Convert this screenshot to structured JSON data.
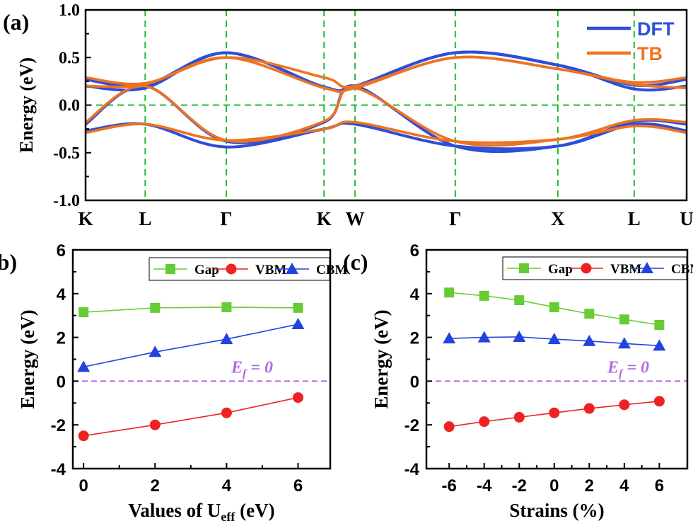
{
  "chart_data": [
    {
      "panel": "(a)",
      "type": "line",
      "ylabel": "Energy (eV)",
      "ylim": [
        -1.0,
        1.0
      ],
      "yticks": [
        "-1.0",
        "-0.5",
        "0.0",
        "0.5",
        "1.0"
      ],
      "ytick_values": [
        -1.0,
        -0.5,
        0.0,
        0.5,
        1.0
      ],
      "kpath_labels": [
        "K",
        "L",
        "Γ",
        "K",
        "W",
        "Γ",
        "X",
        "L",
        "U"
      ],
      "kpath_positions": [
        0,
        0.25,
        0.59,
        1.0,
        1.13,
        1.55,
        1.98,
        2.3,
        2.52
      ],
      "fermi_level": 0.0,
      "legend_position": "top-right",
      "series": [
        {
          "name": "DFT",
          "color": "#2d4ed8",
          "bands": [
            {
              "x": [
                0,
                0.25,
                0.59,
                1.0,
                1.13,
                1.55,
                1.98,
                2.3,
                2.52
              ],
              "y": [
                0.27,
                0.21,
                0.55,
                0.19,
                0.2,
                0.55,
                0.42,
                0.21,
                0.27
              ]
            },
            {
              "x": [
                0,
                0.25,
                0.59,
                1.0,
                1.13,
                1.55,
                1.98,
                2.3,
                2.52
              ],
              "y": [
                0.2,
                0.18,
                0.55,
                0.19,
                0.2,
                0.55,
                0.42,
                0.17,
                0.2
              ]
            },
            {
              "x": [
                0,
                0.25,
                0.59,
                1.0,
                1.13,
                1.55,
                1.98,
                2.3,
                2.52
              ],
              "y": [
                -0.2,
                0.2,
                -0.38,
                -0.18,
                0.2,
                -0.43,
                -0.43,
                -0.17,
                -0.2
              ]
            },
            {
              "x": [
                0,
                0.25,
                0.59,
                1.0,
                1.13,
                1.55,
                1.98,
                2.3,
                2.52
              ],
              "y": [
                -0.27,
                -0.2,
                -0.44,
                -0.25,
                -0.2,
                -0.43,
                -0.43,
                -0.2,
                -0.27
              ]
            }
          ]
        },
        {
          "name": "TB",
          "color": "#ee7320",
          "bands": [
            {
              "x": [
                0,
                0.25,
                0.59,
                1.0,
                1.13,
                1.55,
                1.98,
                2.3,
                2.52
              ],
              "y": [
                0.29,
                0.23,
                0.5,
                0.29,
                0.2,
                0.5,
                0.38,
                0.24,
                0.29
              ]
            },
            {
              "x": [
                0,
                0.25,
                0.59,
                1.0,
                1.13,
                1.55,
                1.98,
                2.3,
                2.52
              ],
              "y": [
                0.2,
                0.22,
                0.5,
                0.18,
                0.18,
                0.5,
                0.38,
                0.22,
                0.18
              ]
            },
            {
              "x": [
                0,
                0.25,
                0.59,
                1.0,
                1.13,
                1.55,
                1.98,
                2.3,
                2.52
              ],
              "y": [
                -0.18,
                0.2,
                -0.37,
                -0.17,
                0.18,
                -0.38,
                -0.36,
                -0.16,
                -0.18
              ]
            },
            {
              "x": [
                0,
                0.25,
                0.59,
                1.0,
                1.13,
                1.55,
                1.98,
                2.3,
                2.52
              ],
              "y": [
                -0.29,
                -0.2,
                -0.37,
                -0.25,
                -0.18,
                -0.38,
                -0.36,
                -0.22,
                -0.29
              ]
            }
          ]
        }
      ]
    },
    {
      "panel": "(b)",
      "type": "line",
      "xlabel": "Values of U",
      "xlabel_sub": "eff",
      "xlabel_suffix": " (eV)",
      "ylabel": "Energy (eV)",
      "xlim": [
        -0.3,
        6.9
      ],
      "ylim": [
        -4,
        6
      ],
      "xticks": [
        "0",
        "2",
        "4",
        "6"
      ],
      "xtick_values": [
        0,
        2,
        4,
        6
      ],
      "yticks": [
        "-4",
        "-2",
        "0",
        "2",
        "4",
        "6"
      ],
      "ytick_values": [
        -4,
        -2,
        0,
        2,
        4,
        6
      ],
      "x": [
        0,
        2,
        4,
        6
      ],
      "annotation": {
        "text": "E",
        "sub": "f",
        "suffix": " = 0"
      },
      "series": [
        {
          "name": "Gap",
          "marker": "square",
          "color": "#66cc33",
          "values": [
            3.15,
            3.35,
            3.38,
            3.35
          ]
        },
        {
          "name": "VBM",
          "marker": "circle",
          "color": "#ee2222",
          "values": [
            -2.5,
            -2.0,
            -1.45,
            -0.75
          ]
        },
        {
          "name": "CBM",
          "marker": "triangle",
          "color": "#2244dd",
          "values": [
            0.65,
            1.33,
            1.92,
            2.6
          ]
        }
      ]
    },
    {
      "panel": "(c)",
      "type": "line",
      "xlabel": "Strains (%)",
      "ylabel": "Energy (eV)",
      "xlim": [
        -7.3,
        7.6
      ],
      "ylim": [
        -4,
        6
      ],
      "xticks": [
        "-6",
        "-4",
        "-2",
        "0",
        "2",
        "4",
        "6"
      ],
      "xtick_values": [
        -6,
        -4,
        -2,
        0,
        2,
        4,
        6
      ],
      "yticks": [
        "-4",
        "-2",
        "0",
        "2",
        "4",
        "6"
      ],
      "ytick_values": [
        -4,
        -2,
        0,
        2,
        4,
        6
      ],
      "x": [
        -6,
        -4,
        -2,
        0,
        2,
        4,
        6
      ],
      "annotation": {
        "text": "E",
        "sub": "f",
        "suffix": " = 0"
      },
      "series": [
        {
          "name": "Gap",
          "marker": "square",
          "color": "#66cc33",
          "values": [
            4.05,
            3.9,
            3.7,
            3.38,
            3.08,
            2.82,
            2.57
          ]
        },
        {
          "name": "VBM",
          "marker": "circle",
          "color": "#ee2222",
          "values": [
            -2.08,
            -1.85,
            -1.65,
            -1.45,
            -1.25,
            -1.08,
            -0.92
          ]
        },
        {
          "name": "CBM",
          "marker": "triangle",
          "color": "#2244dd",
          "values": [
            1.95,
            2.0,
            2.02,
            1.92,
            1.83,
            1.72,
            1.62
          ]
        }
      ]
    }
  ]
}
